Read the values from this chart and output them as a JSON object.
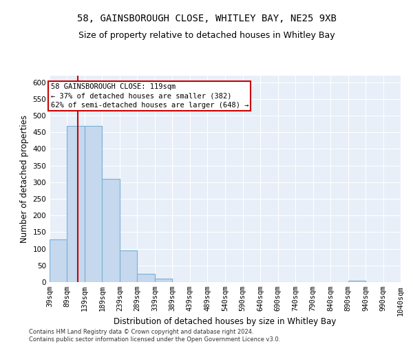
{
  "title1": "58, GAINSBOROUGH CLOSE, WHITLEY BAY, NE25 9XB",
  "title2": "Size of property relative to detached houses in Whitley Bay",
  "xlabel": "Distribution of detached houses by size in Whitley Bay",
  "ylabel": "Number of detached properties",
  "footnote": "Contains HM Land Registry data © Crown copyright and database right 2024.\nContains public sector information licensed under the Open Government Licence v3.0.",
  "bin_edges": [
    39,
    89,
    139,
    189,
    239,
    289,
    339,
    389,
    439,
    489,
    540,
    590,
    640,
    690,
    740,
    790,
    840,
    890,
    940,
    990,
    1040
  ],
  "bar_heights": [
    128,
    470,
    470,
    310,
    95,
    25,
    10,
    0,
    0,
    0,
    0,
    0,
    0,
    0,
    0,
    0,
    0,
    5,
    0,
    0
  ],
  "bar_color": "#c5d8ee",
  "bar_edge_color": "#7aafd4",
  "property_size": 119,
  "vline_color": "#cc0000",
  "annotation_line1": "58 GAINSBOROUGH CLOSE: 119sqm",
  "annotation_line2": "← 37% of detached houses are smaller (382)",
  "annotation_line3": "62% of semi-detached houses are larger (648) →",
  "annotation_box_color": "#cc0000",
  "ylim": [
    0,
    620
  ],
  "yticks": [
    0,
    50,
    100,
    150,
    200,
    250,
    300,
    350,
    400,
    450,
    500,
    550,
    600
  ],
  "background_color": "#e8eff8",
  "grid_color": "#ffffff",
  "title1_fontsize": 10,
  "title2_fontsize": 9,
  "xlabel_fontsize": 8.5,
  "ylabel_fontsize": 8.5,
  "tick_fontsize": 7.5,
  "annotation_fontsize": 7.5,
  "footnote_fontsize": 6
}
